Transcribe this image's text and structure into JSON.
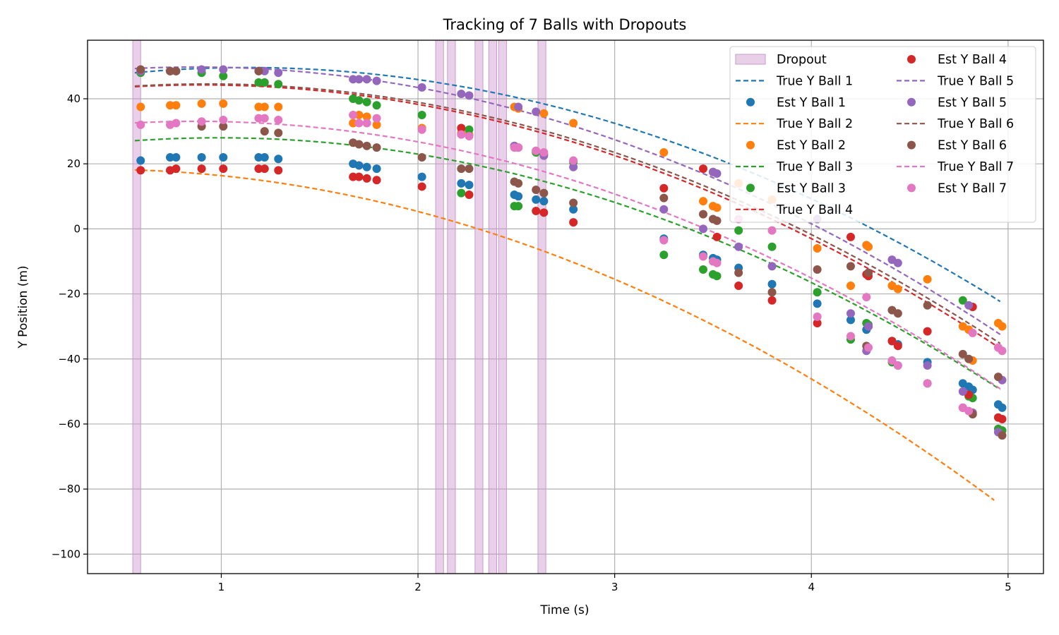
{
  "chart_data": {
    "type": "scatter",
    "title": "Tracking of 7 Balls with Dropouts",
    "xlabel": "Time (s)",
    "ylabel": "Y Position (m)",
    "xlim": [
      0.32,
      5.18
    ],
    "ylim": [
      -106,
      58
    ],
    "xticks": [
      1,
      2,
      3,
      4,
      5
    ],
    "yticks": [
      -100,
      -80,
      -60,
      -40,
      -20,
      0,
      20,
      40
    ],
    "grid": true,
    "legend_placement": "top-right",
    "dropout": {
      "name": "Dropout",
      "color": "#cc99cc",
      "intervals": [
        [
          0.55,
          0.59
        ],
        [
          2.09,
          2.13
        ],
        [
          2.15,
          2.19
        ],
        [
          2.29,
          2.33
        ],
        [
          2.36,
          2.4
        ],
        [
          2.41,
          2.45
        ],
        [
          2.61,
          2.65
        ]
      ]
    },
    "est_times": [
      0.59,
      0.74,
      0.77,
      0.9,
      1.01,
      1.19,
      1.22,
      1.29,
      1.67,
      1.7,
      1.74,
      1.79,
      2.02,
      2.22,
      2.26,
      2.49,
      2.51,
      2.6,
      2.64,
      2.79,
      3.25,
      3.45,
      3.5,
      3.52,
      3.63,
      3.8,
      4.03,
      4.2,
      4.28,
      4.29,
      4.41,
      4.44,
      4.59,
      4.77,
      4.8,
      4.82,
      4.95,
      4.97
    ],
    "series": [
      {
        "true_name": "True Y Ball 1",
        "est_name": "Est Y Ball 1",
        "color": "#1f77b4",
        "true_curve": {
          "x0": 0.56,
          "x1": 4.96,
          "y0": 48,
          "v0": 5.6,
          "g": 9.81
        },
        "est_y": [
          21,
          22,
          22,
          22,
          22,
          22,
          22,
          21.5,
          20,
          19.5,
          19,
          18.5,
          16,
          14,
          13.5,
          10.5,
          10,
          9,
          8.5,
          6,
          -3,
          -8,
          -9,
          -9.5,
          -12,
          -17,
          -23,
          -28,
          -31,
          -30,
          -34.5,
          -35.5,
          -41,
          -47.5,
          -48.5,
          -49.5,
          -54,
          -55
        ]
      },
      {
        "true_name": "True Y Ball 2",
        "est_name": "Est Y Ball 2",
        "color": "#ff7f0e",
        "true_curve": {
          "x0": 0.56,
          "x1": 4.93,
          "y0": 18.1,
          "v0": -1.8,
          "g": 9.81
        },
        "est_y": [
          37.5,
          38,
          38,
          38.5,
          38.5,
          37.5,
          37.5,
          37.5,
          32.5,
          35,
          34.5,
          32,
          31,
          29.5,
          29,
          37.5,
          37,
          24,
          35.5,
          32.5,
          23.5,
          8.5,
          7,
          6.5,
          14,
          9,
          -6,
          -17.5,
          -5,
          -5.5,
          -17.5,
          -18.5,
          -15.5,
          -30,
          -31,
          -40.5,
          -29,
          -30
        ]
      },
      {
        "true_name": "True Y Ball 3",
        "est_name": "Est Y Ball 3",
        "color": "#2ca02c",
        "true_curve": {
          "x0": 0.56,
          "x1": 4.96,
          "y0": 27.1,
          "v0": 4.2,
          "g": 9.81
        },
        "est_y": [
          48,
          48.5,
          48.5,
          48,
          47,
          45,
          45,
          44.5,
          40,
          39.5,
          39,
          38,
          35,
          11,
          30.5,
          7,
          7,
          23.5,
          23,
          20.5,
          -8,
          -12.5,
          -14,
          -14.5,
          -0.5,
          -5.5,
          -19.5,
          -34,
          -29,
          -29.5,
          -41,
          -42,
          -47.5,
          -22,
          -51.5,
          -52,
          -61.5,
          -62
        ]
      },
      {
        "true_name": "True Y Ball 4",
        "est_name": "Est Y Ball 4",
        "color": "#d62728",
        "true_curve": {
          "x0": 0.56,
          "x1": 4.97,
          "y0": 43.7,
          "v0": 3.3,
          "g": 9.81
        },
        "est_y": [
          18,
          18,
          18.5,
          18.5,
          18.5,
          18.5,
          18.5,
          18,
          16,
          16,
          15.5,
          15,
          13,
          31,
          10.5,
          25.5,
          25,
          5.5,
          5,
          2,
          12.5,
          18.5,
          17.5,
          -2.5,
          -17.5,
          -22,
          -29,
          -2.5,
          -14,
          -14.5,
          -34.5,
          -36,
          -31.5,
          -55,
          -51,
          -24,
          -58,
          -58.5
        ]
      },
      {
        "true_name": "True Y Ball 5",
        "est_name": "Est Y Ball 5",
        "color": "#9467bd",
        "true_curve": {
          "x0": 0.56,
          "x1": 4.96,
          "y0": 49.3,
          "v0": 3.0,
          "g": 9.81
        },
        "est_y": [
          48.5,
          48.5,
          48.5,
          49,
          49,
          48.5,
          48.5,
          48,
          46,
          46,
          46,
          45.5,
          43.5,
          41.5,
          41,
          25.5,
          37.5,
          36,
          22.5,
          19,
          6,
          0,
          17.5,
          17,
          -5.5,
          -11.5,
          3,
          -26,
          -37.5,
          -30,
          -9.5,
          -10.5,
          -42,
          -50,
          -23.5,
          -56.5,
          -62.5,
          -46.5
        ]
      },
      {
        "true_name": "True Y Ball 6",
        "est_name": "Est Y Ball 6",
        "color": "#8c564b",
        "true_curve": {
          "x0": 0.56,
          "x1": 4.96,
          "y0": 43.9,
          "v0": 3.6,
          "g": 9.81
        },
        "est_y": [
          49,
          48.5,
          48.5,
          31.5,
          31.5,
          48.5,
          30,
          29.5,
          26.5,
          26,
          25.5,
          25,
          22,
          18.5,
          18.5,
          14.5,
          14,
          12,
          11,
          8,
          9.5,
          4.5,
          3,
          2.5,
          -13.5,
          -19.5,
          -12.5,
          -11.5,
          -36,
          -13.5,
          -25,
          -26,
          -23.5,
          -38.5,
          -40,
          -57,
          -45.5,
          -63.5
        ]
      },
      {
        "true_name": "True Y Ball 7",
        "est_name": "Est Y Ball 7",
        "color": "#e377c2",
        "true_curve": {
          "x0": 0.56,
          "x1": 4.96,
          "y0": 32.6,
          "v0": 3.0,
          "g": 9.81
        },
        "est_y": [
          32,
          32,
          32.5,
          33,
          33.5,
          34,
          34,
          33.5,
          35,
          32.5,
          32.5,
          34,
          30.5,
          29,
          28.5,
          25,
          25,
          24,
          23.5,
          21,
          -3.5,
          -8.5,
          -10,
          -10.5,
          3,
          -0.5,
          -27,
          -33,
          -21,
          -36.5,
          -40.5,
          -42,
          -47.5,
          -55,
          -56,
          -32,
          -36.5,
          -37.5
        ]
      }
    ],
    "legend_columns": [
      [
        "Dropout",
        "True Y Ball 1",
        "Est Y Ball 1",
        "True Y Ball 2",
        "Est Y Ball 2",
        "True Y Ball 3",
        "Est Y Ball 3",
        "True Y Ball 4"
      ],
      [
        "Est Y Ball 4",
        "True Y Ball 5",
        "Est Y Ball 5",
        "True Y Ball 6",
        "Est Y Ball 6",
        "True Y Ball 7",
        "Est Y Ball 7"
      ]
    ]
  }
}
